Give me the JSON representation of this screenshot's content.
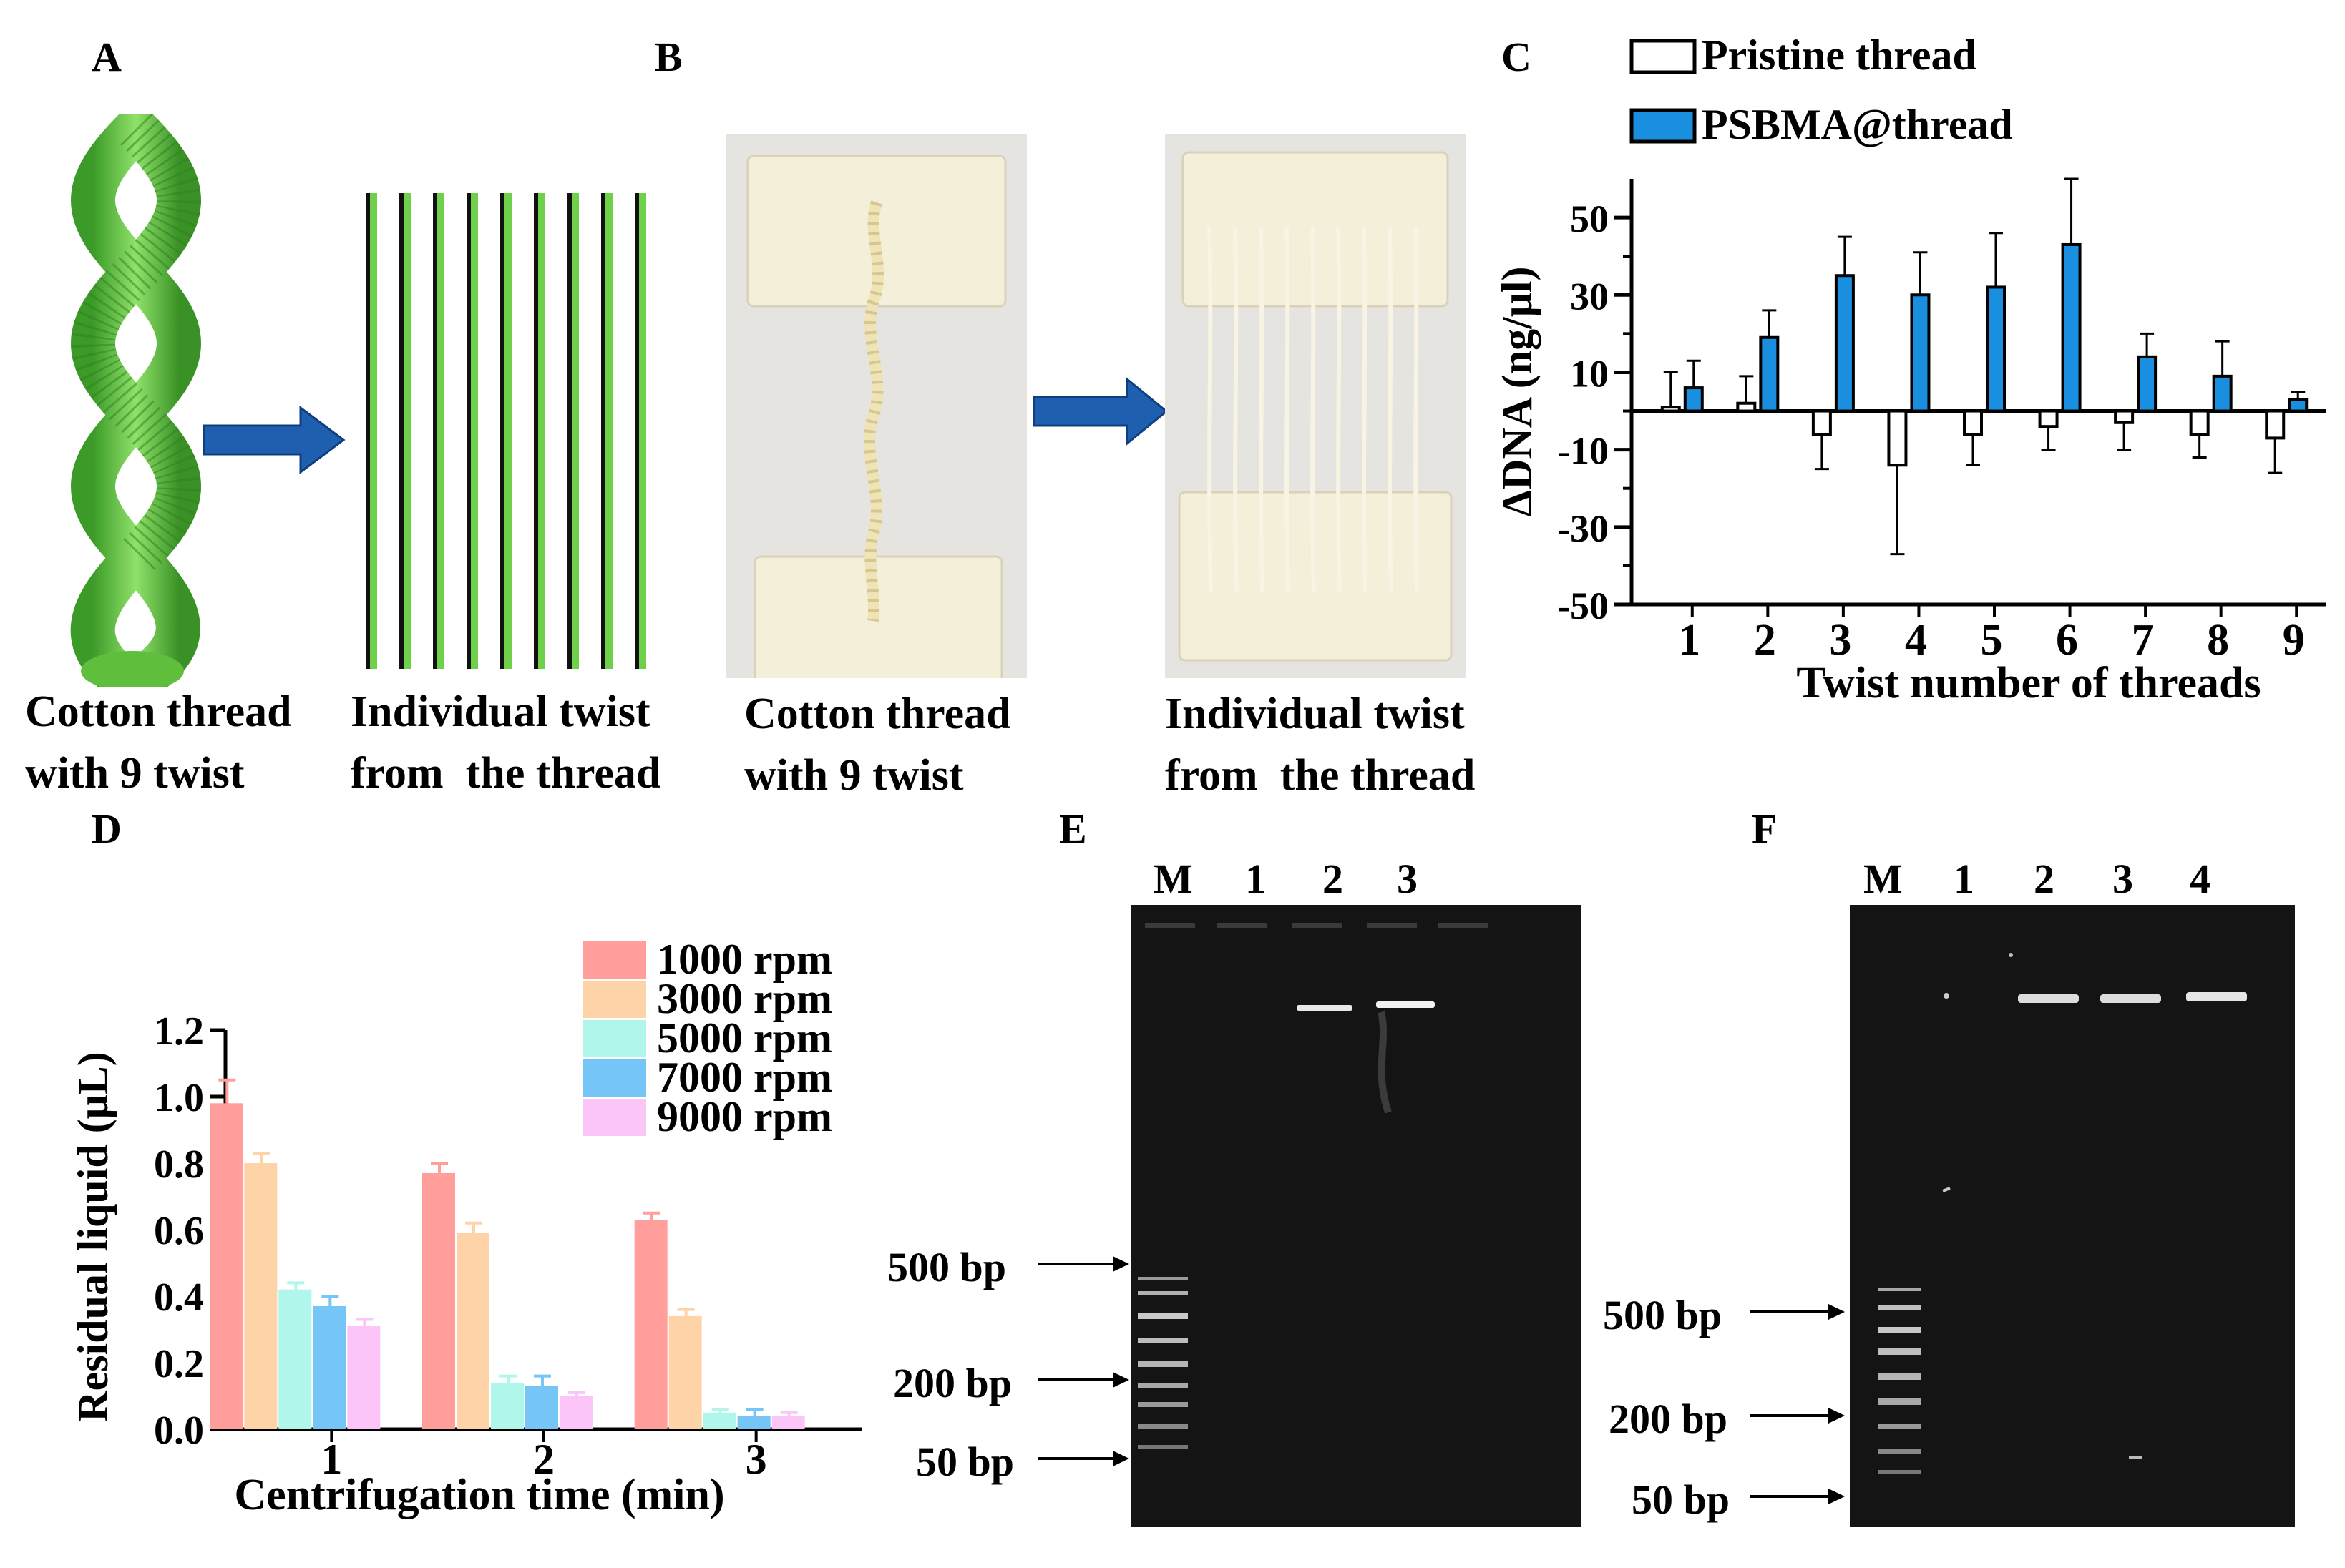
{
  "panels": {
    "A": {
      "label": "A",
      "caption_left": "Cotton thread\nwith 9 twist",
      "caption_right": "Individual twist\nfrom  the thread",
      "thread_color": "#6fd14a",
      "arrow_color": "#1f5fb0"
    },
    "B": {
      "label": "B",
      "caption_left": "Cotton thread\nwith 9 twist",
      "caption_right": "Individual twist\nfrom  the thread"
    },
    "C": {
      "label": "C"
    },
    "D": {
      "label": "D"
    },
    "E": {
      "label": "E",
      "lanes": [
        "M",
        "1",
        "2",
        "3"
      ],
      "markers": [
        "500 bp",
        "200 bp",
        "50 bp"
      ]
    },
    "F": {
      "label": "F",
      "lanes": [
        "M",
        "1",
        "2",
        "3",
        "4"
      ],
      "markers": [
        "500 bp",
        "200 bp",
        "50 bp"
      ]
    }
  },
  "chart_data": [
    {
      "panel": "C",
      "type": "bar",
      "xlabel": "Twist number of threads",
      "ylabel": "ΔDNA (ng/μl)",
      "categories": [
        "1",
        "2",
        "3",
        "4",
        "5",
        "6",
        "7",
        "8",
        "9"
      ],
      "ylim": [
        -50,
        60
      ],
      "yticks": [
        "50",
        "30",
        "10",
        "-10",
        "-30",
        "-50"
      ],
      "ytick_values": [
        50,
        30,
        10,
        -10,
        -30,
        -50
      ],
      "legend": "top",
      "series": [
        {
          "name": "Pristine thread",
          "color": "#ffffff",
          "values": [
            1,
            2,
            -6,
            -14,
            -6,
            -4,
            -3,
            -6,
            -7
          ],
          "errors": [
            9,
            7,
            9,
            23,
            8,
            6,
            7,
            6,
            9
          ]
        },
        {
          "name": "PSBMA@thread",
          "color": "#1a8fe0",
          "values": [
            6,
            19,
            35,
            30,
            32,
            43,
            14,
            9,
            3
          ],
          "errors": [
            7,
            7,
            10,
            11,
            14,
            17,
            6,
            9,
            2
          ]
        }
      ]
    },
    {
      "panel": "D",
      "type": "bar",
      "xlabel": "Centrifugation time (min)",
      "ylabel": "Residual liquid  (μL)",
      "categories": [
        "1",
        "2",
        "3"
      ],
      "ylim": [
        0,
        1.2
      ],
      "yticks": [
        "1.2",
        "1.0",
        "0.8",
        "0.6",
        "0.4",
        "0.2",
        "0.0"
      ],
      "ytick_values": [
        1.2,
        1.0,
        0.8,
        0.6,
        0.4,
        0.2,
        0.0
      ],
      "legend": "top-right",
      "series": [
        {
          "name": "1000 rpm",
          "color": "#ff9e9a",
          "values": [
            0.98,
            0.77,
            0.63
          ],
          "errors": [
            0.07,
            0.03,
            0.02
          ]
        },
        {
          "name": "3000 rpm",
          "color": "#ffd3a8",
          "values": [
            0.8,
            0.59,
            0.34
          ],
          "errors": [
            0.03,
            0.03,
            0.02
          ]
        },
        {
          "name": "5000 rpm",
          "color": "#b0f6ea",
          "values": [
            0.42,
            0.14,
            0.05
          ],
          "errors": [
            0.02,
            0.02,
            0.01
          ]
        },
        {
          "name": "7000 rpm",
          "color": "#75c5f7",
          "values": [
            0.37,
            0.13,
            0.04
          ],
          "errors": [
            0.03,
            0.03,
            0.02
          ]
        },
        {
          "name": "9000 rpm",
          "color": "#fbc6f7",
          "values": [
            0.31,
            0.1,
            0.04
          ],
          "errors": [
            0.02,
            0.01,
            0.01
          ]
        }
      ]
    }
  ]
}
